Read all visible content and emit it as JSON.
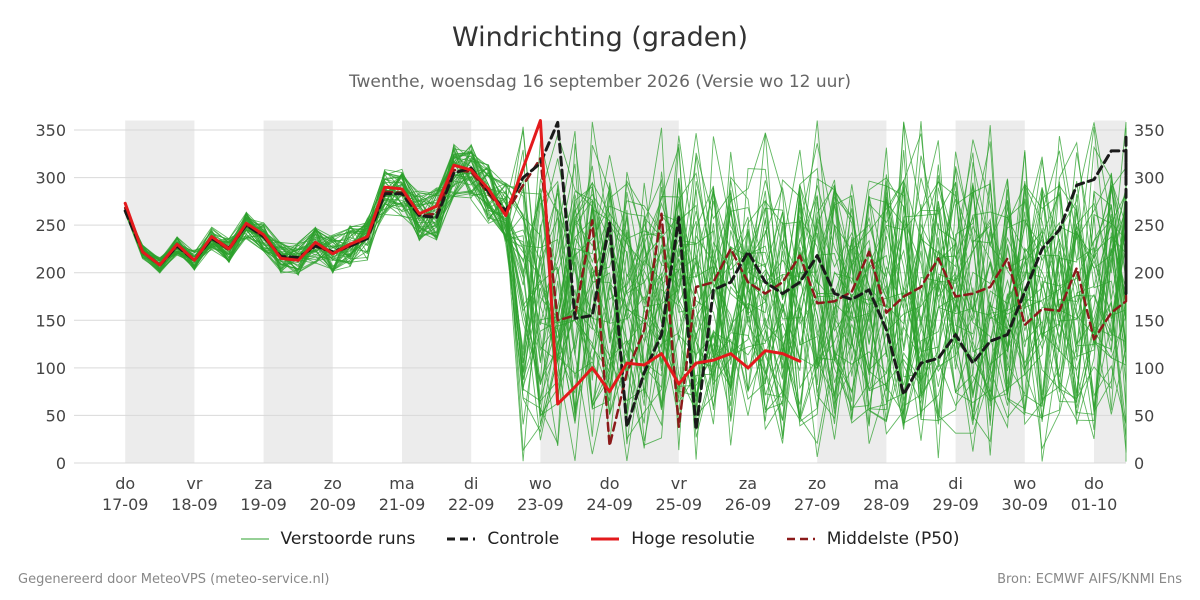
{
  "title": "Windrichting (graden)",
  "subtitle": "Twenthe, woensdag 16 september 2026 (Versie wo 12 uur)",
  "footer_left": "Gegenereerd door MeteoVPS (meteo-service.nl)",
  "footer_right": "Bron: ECMWF AIFS/KNMI Ens",
  "colors": {
    "ensemble": "#2ca02c",
    "control": "#1a1a1a",
    "high_res": "#e31a1c",
    "median": "#8b1a1a",
    "weekend_band": "#ececec",
    "grid": "#d9d9d9"
  },
  "chart_data": {
    "type": "line",
    "title": "Windrichting (graden)",
    "xlabel": "",
    "ylabel": "",
    "ylim": [
      0,
      360
    ],
    "yticks": [
      0,
      50,
      100,
      150,
      200,
      250,
      300,
      350
    ],
    "x_step_days": 0.25,
    "day_ticks": [
      {
        "day": "do",
        "date": "17-09"
      },
      {
        "day": "vr",
        "date": "18-09"
      },
      {
        "day": "za",
        "date": "19-09"
      },
      {
        "day": "zo",
        "date": "20-09"
      },
      {
        "day": "ma",
        "date": "21-09"
      },
      {
        "day": "di",
        "date": "22-09"
      },
      {
        "day": "wo",
        "date": "23-09"
      },
      {
        "day": "do",
        "date": "24-09"
      },
      {
        "day": "vr",
        "date": "25-09"
      },
      {
        "day": "za",
        "date": "26-09"
      },
      {
        "day": "zo",
        "date": "27-09"
      },
      {
        "day": "ma",
        "date": "28-09"
      },
      {
        "day": "di",
        "date": "29-09"
      },
      {
        "day": "wo",
        "date": "30-09"
      },
      {
        "day": "do",
        "date": "01-10"
      }
    ],
    "shaded_day_pairs": [
      [
        0,
        1
      ],
      [
        2,
        3
      ],
      [
        4,
        5
      ],
      [
        6,
        8
      ],
      [
        10,
        11
      ],
      [
        12,
        13
      ],
      [
        14,
        14.5
      ]
    ],
    "legend": [
      "Verstoorde runs",
      "Controle",
      "Hoge resolutie",
      "Middelste (P50)"
    ],
    "series": [
      {
        "name": "Controle",
        "style": "dashed",
        "values": [
          265,
          222,
          208,
          228,
          213,
          236,
          226,
          250,
          238,
          217,
          216,
          228,
          222,
          228,
          236,
          283,
          283,
          260,
          258,
          305,
          310,
          285,
          265,
          300,
          315,
          358,
          152,
          155,
          252,
          38,
          95,
          135,
          258,
          35,
          182,
          190,
          222,
          190,
          178,
          190,
          218,
          178,
          172,
          182,
          140,
          72,
          105,
          110,
          135,
          105,
          128,
          135,
          180,
          225,
          245,
          292,
          298,
          328,
          328,
          318,
          322,
          302,
          345,
          178,
          272
        ]
      },
      {
        "name": "Hoge resolutie",
        "style": "solid",
        "values": [
          273,
          222,
          208,
          230,
          213,
          238,
          225,
          252,
          240,
          215,
          213,
          232,
          220,
          230,
          238,
          290,
          288,
          262,
          270,
          313,
          308,
          288,
          260,
          310,
          360,
          62,
          80,
          100,
          75,
          105,
          103,
          115,
          83,
          105,
          108,
          115,
          100,
          118,
          115,
          107
        ]
      },
      {
        "name": "Middelste (P50)",
        "style": "dashed",
        "values": [
          268,
          222,
          208,
          228,
          213,
          236,
          224,
          250,
          238,
          216,
          214,
          229,
          220,
          228,
          236,
          285,
          284,
          260,
          262,
          308,
          306,
          283,
          262,
          292,
          320,
          150,
          155,
          255,
          18,
          95,
          140,
          262,
          38,
          185,
          190,
          225,
          190,
          178,
          190,
          218,
          168,
          170,
          180,
          222,
          158,
          175,
          185,
          215,
          175,
          178,
          185,
          215,
          145,
          162,
          160,
          205,
          130,
          158,
          170,
          205
        ]
      },
      {
        "name": "Verstoorde runs",
        "count": 50,
        "note_free": true,
        "spread_until_index": 23,
        "median_ref": "Middelste (P50)"
      }
    ]
  }
}
